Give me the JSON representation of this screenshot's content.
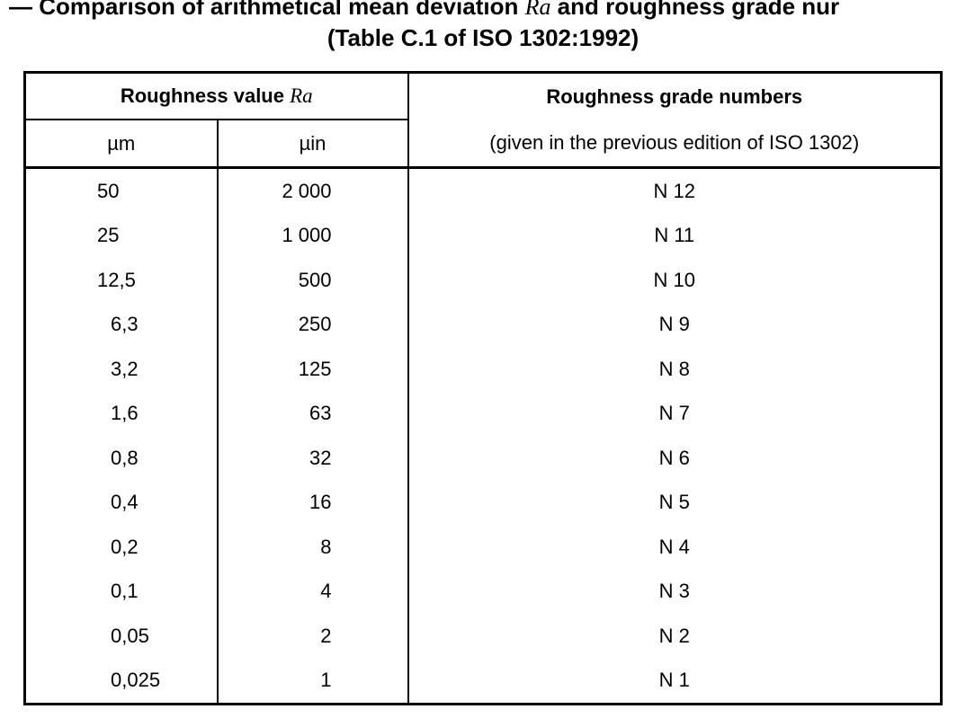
{
  "title": {
    "line1": {
      "before": "— Comparison of arithmetical mean deviation ",
      "symbol": "Ra",
      "after": " and roughness grade nur"
    },
    "line2": "(Table C.1 of ISO 1302:1992)"
  },
  "table": {
    "header": {
      "roughness_value": "Roughness value ",
      "symbol": "Ra",
      "unit_um": "µm",
      "unit_uin": "µin",
      "grade_title": "Roughness grade numbers",
      "grade_note": "(given in the previous edition of ISO 1302)"
    },
    "rows": [
      [
        "50",
        "2 000",
        "N 12"
      ],
      [
        "25",
        "1 000",
        "N 11"
      ],
      [
        "12,5",
        "500",
        "N 10"
      ],
      [
        "6,3",
        "250",
        "N 9"
      ],
      [
        "3,2",
        "125",
        "N 8"
      ],
      [
        "1,6",
        "63",
        "N 7"
      ],
      [
        "0,8",
        "32",
        "N 6"
      ],
      [
        "0,4",
        "16",
        "N 5"
      ],
      [
        "0,2",
        "8",
        "N 4"
      ],
      [
        "0,1",
        "4",
        "N 3"
      ],
      [
        "0,05",
        "2",
        "N 2"
      ],
      [
        "0,025",
        "1",
        "N 1"
      ]
    ]
  }
}
